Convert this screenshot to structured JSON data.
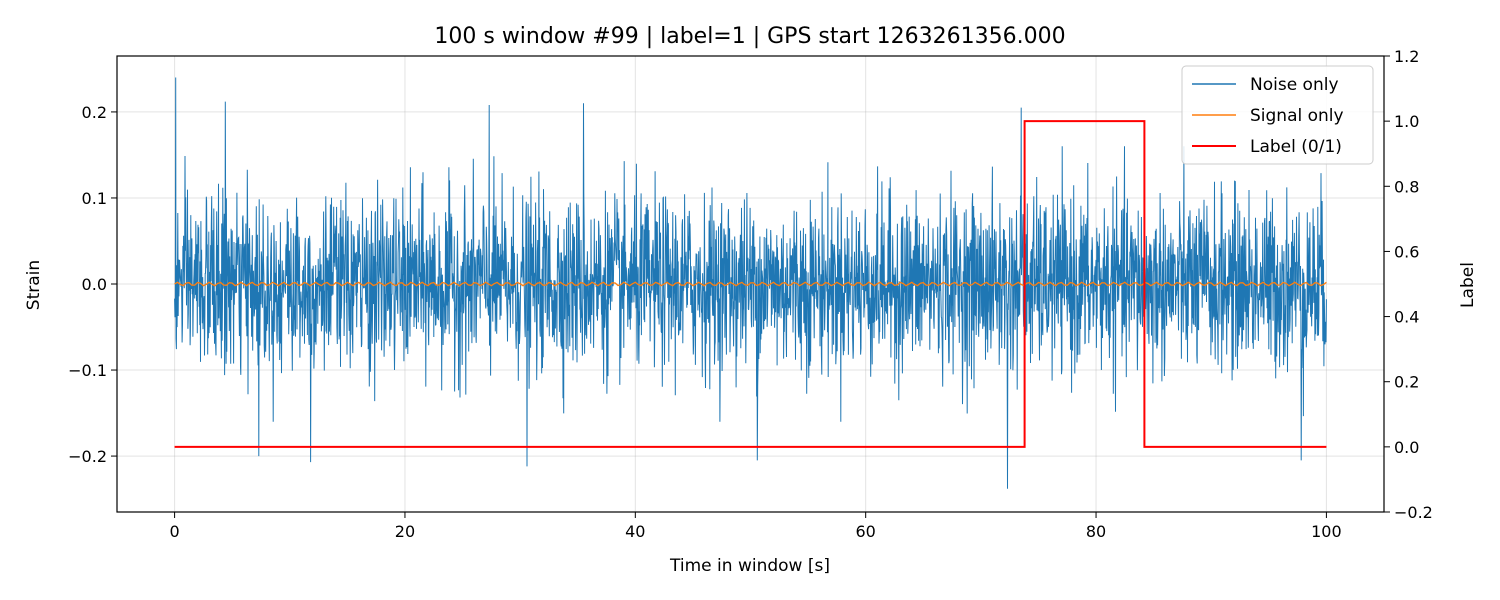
{
  "chart_data": {
    "type": "line",
    "title": "100 s window #99 | label=1 | GPS start 1263261356.000",
    "xlabel": "Time in window [s]",
    "ylabel": "Strain",
    "y2label": "Label",
    "xlim": [
      -5,
      105
    ],
    "ylim": [
      -0.265,
      0.265
    ],
    "y2lim": [
      -0.2,
      1.2
    ],
    "xticks": [
      0,
      20,
      40,
      60,
      80,
      100
    ],
    "xtick_labels": [
      "0",
      "20",
      "40",
      "60",
      "80",
      "100"
    ],
    "yticks": [
      -0.2,
      -0.1,
      0.0,
      0.1,
      0.2
    ],
    "ytick_labels": [
      "−0.2",
      "−0.1",
      "0.0",
      "0.1",
      "0.2"
    ],
    "y2ticks": [
      -0.2,
      0.0,
      0.2,
      0.4,
      0.6,
      0.8,
      1.0,
      1.2
    ],
    "y2tick_labels": [
      "−0.2",
      "0.0",
      "0.2",
      "0.4",
      "0.6",
      "0.8",
      "1.0",
      "1.2"
    ],
    "grid": true,
    "legend_position": "top-right",
    "series": [
      {
        "name": "Noise only",
        "axis": "left",
        "color": "#1f77b4",
        "x_range": [
          0,
          100
        ],
        "envelope_amplitude": 0.12,
        "notable_spikes": [
          {
            "x": 0.1,
            "y": 0.24
          },
          {
            "x": 4.4,
            "y": 0.212
          },
          {
            "x": 27.3,
            "y": 0.208
          },
          {
            "x": 35.5,
            "y": 0.21
          },
          {
            "x": 73.5,
            "y": 0.205
          },
          {
            "x": 7.3,
            "y": -0.2
          },
          {
            "x": 11.8,
            "y": -0.207
          },
          {
            "x": 30.6,
            "y": -0.212
          },
          {
            "x": 50.6,
            "y": -0.205
          },
          {
            "x": 72.3,
            "y": -0.238
          },
          {
            "x": 97.8,
            "y": -0.205
          }
        ]
      },
      {
        "name": "Signal only",
        "axis": "left",
        "color": "#ff7f0e",
        "x_range": [
          0,
          100
        ],
        "amplitude": 0.002
      },
      {
        "name": "Label (0/1)",
        "axis": "right",
        "color": "#ff0000",
        "x": [
          0,
          73.8,
          73.8,
          84.2,
          84.2,
          100
        ],
        "y": [
          0,
          0,
          1,
          1,
          0,
          0
        ]
      }
    ]
  }
}
